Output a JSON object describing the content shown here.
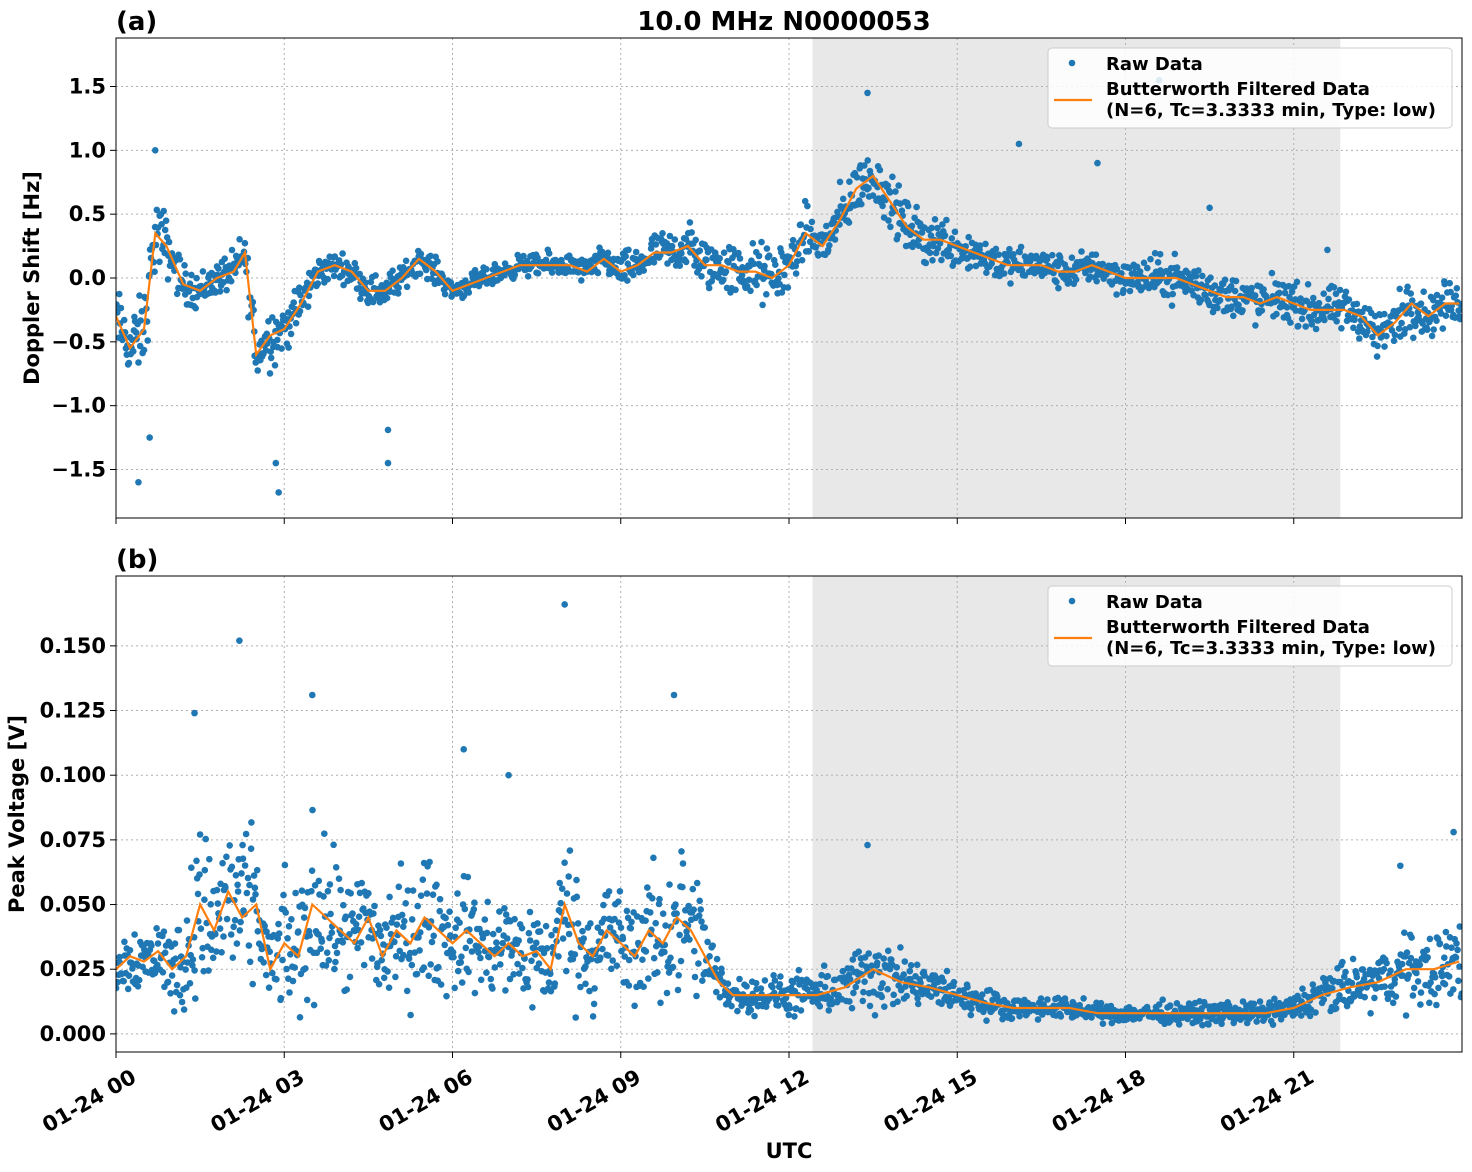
{
  "figure": {
    "title": "10.0 MHz N0000053",
    "xlabel": "UTC"
  },
  "legend": {
    "raw_label": "Raw Data",
    "filtered_label_line1": "Butterworth Filtered Data",
    "filtered_label_line2": "(N=6, Tc=3.3333 min, Type: low)"
  },
  "colors": {
    "raw": "#1f77b4",
    "filtered": "#ff7f0e",
    "shade": "#e8e8e8"
  },
  "chart_data": [
    {
      "type": "scatter",
      "panel_tag": "(a)",
      "title": "10.0 MHz N0000053",
      "xlabel": "",
      "ylabel": "Doppler Shift [Hz]",
      "xlim": [
        0,
        24
      ],
      "ylim": [
        -1.88,
        1.88
      ],
      "yticks": [
        -1.5,
        -1.0,
        -0.5,
        0.0,
        0.5,
        1.0,
        1.5
      ],
      "ytick_labels": [
        "−1.5",
        "−1.0",
        "−0.5",
        "0.0",
        "0.5",
        "1.0",
        "1.5"
      ],
      "xticks": [
        0,
        3,
        6,
        9,
        12,
        15,
        18,
        21
      ],
      "grid": true,
      "legend_position": "top-right",
      "shaded_region_hours": [
        12.42,
        21.83
      ],
      "series": [
        {
          "name": "Raw Data",
          "style": "points",
          "x": [
            0.0,
            0.25,
            0.5,
            0.7,
            0.9,
            1.2,
            1.5,
            1.8,
            2.1,
            2.3,
            2.5,
            2.75,
            3.0,
            3.3,
            3.6,
            3.9,
            4.2,
            4.5,
            4.8,
            5.1,
            5.4,
            5.7,
            6.0,
            6.3,
            6.6,
            6.9,
            7.2,
            7.5,
            7.8,
            8.1,
            8.4,
            8.7,
            9.0,
            9.3,
            9.6,
            9.9,
            10.2,
            10.5,
            10.8,
            11.1,
            11.4,
            11.7,
            12.0,
            12.3,
            12.6,
            12.9,
            13.2,
            13.5,
            13.8,
            14.1,
            14.4,
            14.7,
            15.0,
            15.3,
            15.6,
            15.9,
            16.2,
            16.5,
            16.8,
            17.1,
            17.4,
            17.7,
            18.0,
            18.3,
            18.6,
            18.9,
            19.2,
            19.5,
            19.8,
            20.1,
            20.4,
            20.7,
            21.0,
            21.3,
            21.6,
            21.9,
            22.2,
            22.5,
            22.8,
            23.1,
            23.4,
            23.7,
            23.95
          ],
          "y": [
            -0.3,
            -0.55,
            -0.4,
            0.35,
            0.25,
            -0.05,
            -0.1,
            0.0,
            0.05,
            0.2,
            -0.6,
            -0.45,
            -0.4,
            -0.2,
            0.05,
            0.1,
            0.05,
            -0.1,
            -0.1,
            0.0,
            0.15,
            0.05,
            -0.1,
            -0.05,
            0.0,
            0.05,
            0.1,
            0.1,
            0.1,
            0.1,
            0.05,
            0.15,
            0.05,
            0.1,
            0.2,
            0.2,
            0.25,
            0.1,
            0.1,
            0.05,
            0.05,
            0.0,
            0.1,
            0.35,
            0.25,
            0.45,
            0.7,
            0.8,
            0.6,
            0.4,
            0.3,
            0.3,
            0.25,
            0.2,
            0.15,
            0.1,
            0.1,
            0.1,
            0.05,
            0.05,
            0.1,
            0.05,
            0.0,
            0.0,
            0.0,
            0.0,
            -0.05,
            -0.1,
            -0.15,
            -0.15,
            -0.2,
            -0.15,
            -0.2,
            -0.25,
            -0.25,
            -0.25,
            -0.3,
            -0.45,
            -0.35,
            -0.2,
            -0.3,
            -0.2,
            -0.2
          ]
        },
        {
          "name": "Butterworth Filtered Data",
          "style": "line",
          "x": [
            0.0,
            0.25,
            0.5,
            0.7,
            0.9,
            1.2,
            1.5,
            1.8,
            2.1,
            2.3,
            2.5,
            2.75,
            3.0,
            3.3,
            3.6,
            3.9,
            4.2,
            4.5,
            4.8,
            5.1,
            5.4,
            5.7,
            6.0,
            6.3,
            6.6,
            6.9,
            7.2,
            7.5,
            7.8,
            8.1,
            8.4,
            8.7,
            9.0,
            9.3,
            9.6,
            9.9,
            10.2,
            10.5,
            10.8,
            11.1,
            11.4,
            11.7,
            12.0,
            12.3,
            12.6,
            12.9,
            13.2,
            13.5,
            13.8,
            14.1,
            14.4,
            14.7,
            15.0,
            15.3,
            15.6,
            15.9,
            16.2,
            16.5,
            16.8,
            17.1,
            17.4,
            17.7,
            18.0,
            18.3,
            18.6,
            18.9,
            19.2,
            19.5,
            19.8,
            20.1,
            20.4,
            20.7,
            21.0,
            21.3,
            21.6,
            21.9,
            22.2,
            22.5,
            22.8,
            23.1,
            23.4,
            23.7,
            23.95
          ],
          "y": [
            -0.3,
            -0.55,
            -0.4,
            0.35,
            0.25,
            -0.05,
            -0.1,
            0.0,
            0.05,
            0.2,
            -0.6,
            -0.45,
            -0.4,
            -0.2,
            0.05,
            0.1,
            0.05,
            -0.1,
            -0.1,
            0.0,
            0.15,
            0.05,
            -0.1,
            -0.05,
            0.0,
            0.05,
            0.1,
            0.1,
            0.1,
            0.1,
            0.05,
            0.15,
            0.05,
            0.1,
            0.2,
            0.2,
            0.25,
            0.1,
            0.1,
            0.05,
            0.05,
            0.0,
            0.1,
            0.35,
            0.25,
            0.45,
            0.7,
            0.8,
            0.6,
            0.4,
            0.3,
            0.3,
            0.25,
            0.2,
            0.15,
            0.1,
            0.1,
            0.1,
            0.05,
            0.05,
            0.1,
            0.05,
            0.0,
            0.0,
            0.0,
            0.0,
            -0.05,
            -0.1,
            -0.15,
            -0.15,
            -0.2,
            -0.15,
            -0.2,
            -0.25,
            -0.25,
            -0.25,
            -0.3,
            -0.45,
            -0.35,
            -0.2,
            -0.3,
            -0.2,
            -0.2
          ]
        }
      ],
      "raw_spread": [
        0.35,
        0.35,
        0.45,
        0.45,
        0.35,
        0.22,
        0.22,
        0.2,
        0.22,
        0.3,
        0.4,
        0.35,
        0.3,
        0.25,
        0.18,
        0.15,
        0.15,
        0.18,
        0.2,
        0.15,
        0.15,
        0.15,
        0.12,
        0.12,
        0.12,
        0.12,
        0.12,
        0.12,
        0.15,
        0.12,
        0.15,
        0.15,
        0.2,
        0.2,
        0.2,
        0.25,
        0.3,
        0.3,
        0.3,
        0.3,
        0.35,
        0.35,
        0.3,
        0.3,
        0.3,
        0.35,
        0.3,
        0.3,
        0.3,
        0.3,
        0.3,
        0.3,
        0.25,
        0.25,
        0.22,
        0.2,
        0.2,
        0.2,
        0.2,
        0.18,
        0.2,
        0.2,
        0.2,
        0.22,
        0.25,
        0.25,
        0.25,
        0.25,
        0.25,
        0.25,
        0.25,
        0.25,
        0.22,
        0.25,
        0.25,
        0.25,
        0.25,
        0.3,
        0.3,
        0.3,
        0.25,
        0.25,
        0.25
      ],
      "outliers": [
        [
          0.4,
          -1.6
        ],
        [
          0.7,
          1.0
        ],
        [
          2.9,
          -1.68
        ],
        [
          4.85,
          -1.19
        ],
        [
          4.85,
          -1.45
        ],
        [
          2.85,
          -1.45
        ],
        [
          13.4,
          1.45
        ],
        [
          16.1,
          1.05
        ],
        [
          17.5,
          0.9
        ],
        [
          18.6,
          1.55
        ],
        [
          19.5,
          0.55
        ],
        [
          21.6,
          0.22
        ],
        [
          0.6,
          -1.25
        ]
      ]
    },
    {
      "type": "scatter",
      "panel_tag": "(b)",
      "title": "",
      "xlabel": "UTC",
      "ylabel": "Peak Voltage [V]",
      "xlim": [
        0,
        24
      ],
      "ylim": [
        -0.007,
        0.177
      ],
      "yticks": [
        0.0,
        0.025,
        0.05,
        0.075,
        0.1,
        0.125,
        0.15
      ],
      "ytick_labels": [
        "0.000",
        "0.025",
        "0.050",
        "0.075",
        "0.100",
        "0.125",
        "0.150"
      ],
      "xticks": [
        0,
        3,
        6,
        9,
        12,
        15,
        18,
        21
      ],
      "xtick_labels": [
        "01-24 00",
        "01-24 03",
        "01-24 06",
        "01-24 09",
        "01-24 12",
        "01-24 15",
        "01-24 18",
        "01-24 21"
      ],
      "grid": true,
      "legend_position": "top-right",
      "shaded_region_hours": [
        12.42,
        21.83
      ],
      "series": [
        {
          "name": "Raw Data",
          "style": "points",
          "x": [
            0.0,
            0.25,
            0.5,
            0.75,
            1.0,
            1.25,
            1.5,
            1.75,
            2.0,
            2.25,
            2.5,
            2.75,
            3.0,
            3.25,
            3.5,
            3.75,
            4.0,
            4.25,
            4.5,
            4.75,
            5.0,
            5.25,
            5.5,
            5.75,
            6.0,
            6.25,
            6.5,
            6.75,
            7.0,
            7.25,
            7.5,
            7.75,
            8.0,
            8.25,
            8.5,
            8.75,
            9.0,
            9.25,
            9.5,
            9.75,
            10.0,
            10.25,
            10.5,
            10.75,
            11.0,
            11.5,
            12.0,
            12.5,
            13.0,
            13.5,
            14.0,
            14.5,
            15.0,
            15.5,
            16.0,
            16.5,
            17.0,
            17.5,
            18.0,
            18.5,
            19.0,
            19.5,
            20.0,
            20.5,
            21.0,
            21.5,
            22.0,
            22.5,
            23.0,
            23.5,
            23.95
          ],
          "y": [
            0.025,
            0.03,
            0.028,
            0.032,
            0.025,
            0.03,
            0.05,
            0.04,
            0.055,
            0.045,
            0.05,
            0.025,
            0.035,
            0.03,
            0.05,
            0.045,
            0.04,
            0.035,
            0.045,
            0.03,
            0.04,
            0.035,
            0.045,
            0.04,
            0.035,
            0.04,
            0.035,
            0.03,
            0.035,
            0.03,
            0.032,
            0.025,
            0.05,
            0.035,
            0.03,
            0.04,
            0.035,
            0.03,
            0.04,
            0.035,
            0.045,
            0.04,
            0.03,
            0.02,
            0.015,
            0.015,
            0.015,
            0.015,
            0.018,
            0.025,
            0.02,
            0.018,
            0.015,
            0.012,
            0.01,
            0.01,
            0.01,
            0.008,
            0.008,
            0.008,
            0.008,
            0.008,
            0.008,
            0.008,
            0.01,
            0.015,
            0.018,
            0.02,
            0.025,
            0.025,
            0.028
          ]
        },
        {
          "name": "Butterworth Filtered Data",
          "style": "line",
          "x": [
            0.0,
            0.25,
            0.5,
            0.75,
            1.0,
            1.25,
            1.5,
            1.75,
            2.0,
            2.25,
            2.5,
            2.75,
            3.0,
            3.25,
            3.5,
            3.75,
            4.0,
            4.25,
            4.5,
            4.75,
            5.0,
            5.25,
            5.5,
            5.75,
            6.0,
            6.25,
            6.5,
            6.75,
            7.0,
            7.25,
            7.5,
            7.75,
            8.0,
            8.25,
            8.5,
            8.75,
            9.0,
            9.25,
            9.5,
            9.75,
            10.0,
            10.25,
            10.5,
            10.75,
            11.0,
            11.5,
            12.0,
            12.5,
            13.0,
            13.5,
            14.0,
            14.5,
            15.0,
            15.5,
            16.0,
            16.5,
            17.0,
            17.5,
            18.0,
            18.5,
            19.0,
            19.5,
            20.0,
            20.5,
            21.0,
            21.5,
            22.0,
            22.5,
            23.0,
            23.5,
            23.95
          ],
          "y": [
            0.025,
            0.03,
            0.028,
            0.032,
            0.025,
            0.03,
            0.05,
            0.04,
            0.055,
            0.045,
            0.05,
            0.025,
            0.035,
            0.03,
            0.05,
            0.045,
            0.04,
            0.035,
            0.045,
            0.03,
            0.04,
            0.035,
            0.045,
            0.04,
            0.035,
            0.04,
            0.035,
            0.03,
            0.035,
            0.03,
            0.032,
            0.025,
            0.05,
            0.035,
            0.03,
            0.04,
            0.035,
            0.03,
            0.04,
            0.035,
            0.045,
            0.04,
            0.03,
            0.02,
            0.015,
            0.015,
            0.015,
            0.015,
            0.018,
            0.025,
            0.02,
            0.018,
            0.015,
            0.012,
            0.01,
            0.01,
            0.01,
            0.008,
            0.008,
            0.008,
            0.008,
            0.008,
            0.008,
            0.008,
            0.01,
            0.015,
            0.018,
            0.02,
            0.025,
            0.025,
            0.028
          ]
        }
      ],
      "raw_spread": [
        0.015,
        0.018,
        0.02,
        0.02,
        0.02,
        0.035,
        0.045,
        0.045,
        0.05,
        0.045,
        0.04,
        0.02,
        0.035,
        0.04,
        0.05,
        0.04,
        0.035,
        0.035,
        0.04,
        0.035,
        0.035,
        0.035,
        0.035,
        0.035,
        0.03,
        0.03,
        0.03,
        0.03,
        0.03,
        0.03,
        0.03,
        0.025,
        0.045,
        0.035,
        0.03,
        0.035,
        0.035,
        0.03,
        0.035,
        0.04,
        0.045,
        0.04,
        0.03,
        0.012,
        0.01,
        0.01,
        0.012,
        0.012,
        0.014,
        0.025,
        0.015,
        0.012,
        0.01,
        0.008,
        0.006,
        0.006,
        0.006,
        0.005,
        0.005,
        0.006,
        0.006,
        0.006,
        0.006,
        0.006,
        0.008,
        0.012,
        0.014,
        0.016,
        0.02,
        0.02,
        0.025
      ],
      "outliers": [
        [
          2.2,
          0.152
        ],
        [
          8.0,
          0.166
        ],
        [
          1.4,
          0.124
        ],
        [
          3.5,
          0.131
        ],
        [
          9.95,
          0.131
        ],
        [
          13.4,
          0.073
        ],
        [
          22.9,
          0.065
        ],
        [
          23.85,
          0.078
        ],
        [
          7.0,
          0.1
        ],
        [
          6.2,
          0.11
        ]
      ]
    }
  ]
}
